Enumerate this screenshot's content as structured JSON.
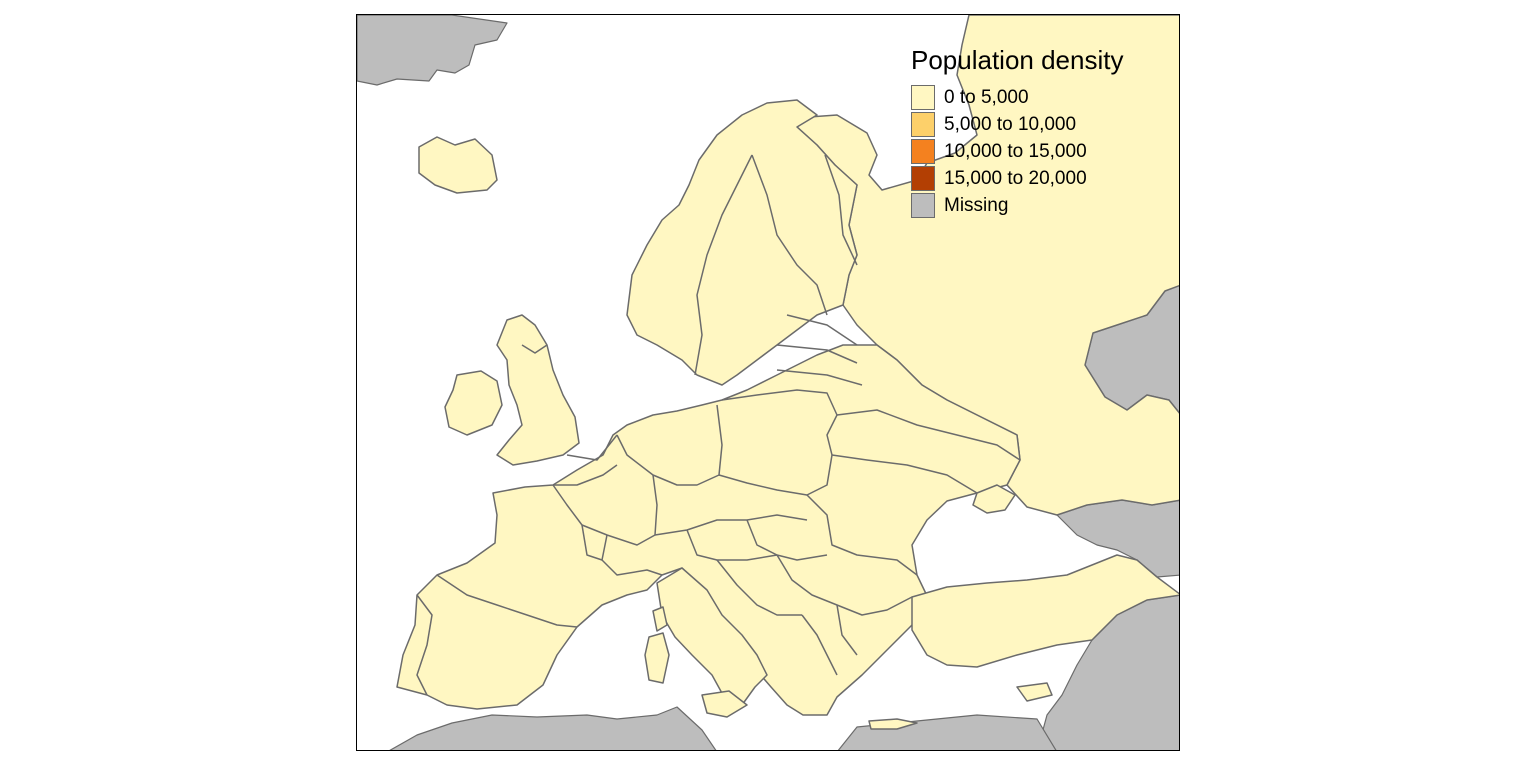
{
  "legend": {
    "title": "Population density",
    "items": [
      {
        "label": "0 to 5,000",
        "color": "#fff7c2"
      },
      {
        "label": "5,000 to 10,000",
        "color": "#fdd06a"
      },
      {
        "label": "10,000 to 15,000",
        "color": "#f4811f"
      },
      {
        "label": "15,000 to 20,000",
        "color": "#b33f03"
      },
      {
        "label": "Missing",
        "color": "#bdbdbd"
      }
    ]
  },
  "colors": {
    "land": "#fff7c2",
    "missing": "#bdbdbd",
    "border": "#6b6b6b",
    "water": "#ffffff"
  }
}
